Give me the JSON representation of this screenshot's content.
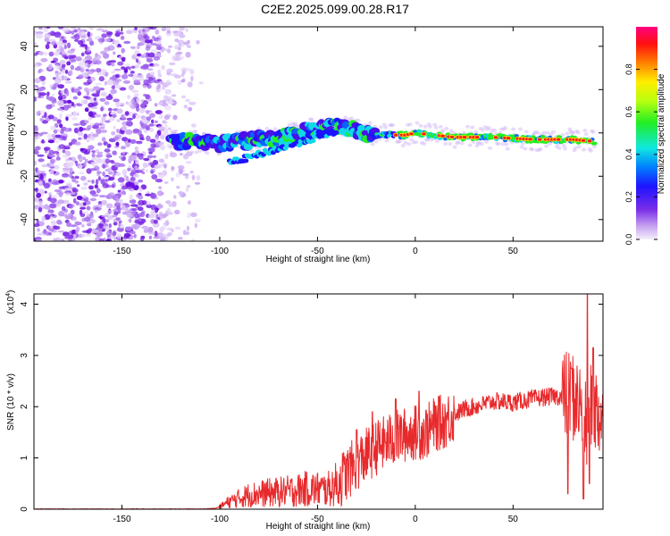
{
  "chart_data": [
    {
      "type": "heatmap",
      "title": "C2E2.2025.099.00.28.R17",
      "xlabel": "Height of straight line (km)",
      "ylabel": "Frequency (Hz)",
      "xlim": [
        -195,
        96
      ],
      "ylim": [
        -50,
        49
      ],
      "xticks": [
        "-150",
        "-100",
        "-50",
        "0",
        "50"
      ],
      "yticks": [
        "-40",
        "-20",
        "0",
        "20",
        "40"
      ],
      "colorbar": {
        "label": "Normalized spectral amplitude",
        "range": [
          0,
          1
        ],
        "ticks": [
          "0.0",
          "0.2",
          "0.4",
          "0.6",
          "0.8"
        ]
      },
      "features": {
        "noise_region_x": [
          -195,
          -115
        ],
        "ridge": [
          [
            -125,
            -4
          ],
          [
            -110,
            -4
          ],
          [
            -100,
            -5
          ],
          [
            -90,
            -4
          ],
          [
            -80,
            -3
          ],
          [
            -70,
            -2
          ],
          [
            -60,
            0
          ],
          [
            -50,
            2
          ],
          [
            -40,
            3
          ],
          [
            -32,
            2
          ],
          [
            -25,
            0
          ],
          [
            -15,
            -1
          ],
          [
            -5,
            -1
          ],
          [
            0,
            0
          ],
          [
            10,
            -1
          ],
          [
            20,
            -2
          ],
          [
            40,
            -2
          ],
          [
            60,
            -3
          ],
          [
            80,
            -3
          ],
          [
            92,
            -4
          ]
        ],
        "secondary_branch": [
          [
            -95,
            -14
          ],
          [
            -80,
            -10
          ],
          [
            -65,
            -6
          ],
          [
            -50,
            -2
          ],
          [
            -40,
            1
          ]
        ],
        "high_amplitude_x": [
          -10,
          93
        ]
      }
    },
    {
      "type": "line",
      "title": "",
      "xlabel": "Height of straight line (km)",
      "ylabel": "SNR (10 * v/v)",
      "multiplier_label": "(x10",
      "multiplier_exp": "4",
      "multiplier_close": ")",
      "xlim": [
        -195,
        96
      ],
      "ylim": [
        0,
        4.2
      ],
      "xticks": [
        "-150",
        "-100",
        "-50",
        "0",
        "50"
      ],
      "yticks": [
        "0",
        "1",
        "2",
        "3",
        "4"
      ],
      "series_color": "#e8292b",
      "envelope": [
        [
          -195,
          0.0
        ],
        [
          -110,
          0.0
        ],
        [
          -102,
          0.02
        ],
        [
          -100,
          0.05
        ],
        [
          -95,
          0.15
        ],
        [
          -85,
          0.28
        ],
        [
          -75,
          0.32
        ],
        [
          -65,
          0.35
        ],
        [
          -55,
          0.4
        ],
        [
          -45,
          0.38
        ],
        [
          -40,
          0.5
        ],
        [
          -35,
          0.7
        ],
        [
          -30,
          0.9
        ],
        [
          -25,
          1.05
        ],
        [
          -20,
          1.2
        ],
        [
          -15,
          1.3
        ],
        [
          -10,
          1.4
        ],
        [
          -5,
          1.45
        ],
        [
          0,
          1.5
        ],
        [
          5,
          1.5
        ],
        [
          10,
          1.65
        ],
        [
          15,
          1.72
        ],
        [
          20,
          1.85
        ],
        [
          25,
          1.95
        ],
        [
          30,
          2.0
        ],
        [
          35,
          2.05
        ],
        [
          40,
          2.1
        ],
        [
          45,
          2.1
        ],
        [
          50,
          2.08
        ],
        [
          55,
          2.12
        ],
        [
          60,
          2.15
        ],
        [
          65,
          2.18
        ],
        [
          70,
          2.2
        ],
        [
          75,
          2.2
        ],
        [
          80,
          2.22
        ],
        [
          85,
          2.0
        ],
        [
          88,
          1.5
        ],
        [
          90,
          2.0
        ],
        [
          93,
          1.9
        ],
        [
          96,
          1.8
        ]
      ],
      "spikes": [
        [
          -30,
          1.55
        ],
        [
          -22,
          1.9
        ],
        [
          -10,
          2.15
        ],
        [
          2,
          2.3
        ],
        [
          12,
          2.2
        ],
        [
          80,
          2.75
        ],
        [
          88,
          4.2
        ],
        [
          91,
          3.15
        ]
      ],
      "dips": [
        [
          78,
          0.3
        ],
        [
          86,
          0.2
        ],
        [
          89,
          0.5
        ]
      ]
    }
  ]
}
